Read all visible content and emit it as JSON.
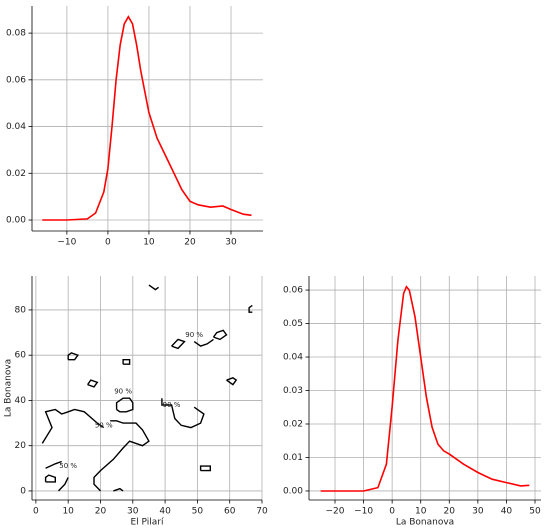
{
  "chart_data": [
    {
      "type": "line",
      "grid": true,
      "x": [
        -16,
        -10,
        -5,
        -3,
        -1,
        0,
        1,
        2,
        3,
        4,
        5,
        6,
        7,
        8,
        10,
        12,
        15,
        18,
        20,
        22,
        25,
        28,
        30,
        33,
        35
      ],
      "series": [
        {
          "color": "#ff0000",
          "values": [
            0,
            0,
            0.0005,
            0.003,
            0.012,
            0.022,
            0.04,
            0.06,
            0.075,
            0.084,
            0.087,
            0.084,
            0.075,
            0.064,
            0.046,
            0.035,
            0.024,
            0.013,
            0.008,
            0.0065,
            0.0055,
            0.006,
            0.0045,
            0.0025,
            0.002
          ]
        }
      ],
      "xlim": [
        -18.5,
        37.8
      ],
      "ylim": [
        -0.0047,
        0.0916
      ],
      "xticks": [
        {
          "value": -10,
          "label": "−10"
        },
        0,
        10,
        20,
        30
      ],
      "yticks": [
        {
          "value": 0,
          "label": "0.00"
        },
        {
          "value": 0.02,
          "label": "0.02"
        },
        {
          "value": 0.04,
          "label": "0.04"
        },
        {
          "value": 0.06,
          "label": "0.06"
        },
        {
          "value": 0.08,
          "label": "0.08"
        }
      ]
    },
    {
      "type": "contour",
      "grid": true,
      "color": "#000000",
      "xlabel": "El Pilarí",
      "ylabel": "La Bonanova",
      "lines": [
        {
          "x": [
            2,
            5,
            3,
            6,
            8,
            10,
            12,
            15,
            19,
            21
          ],
          "y": [
            21,
            28,
            35,
            36,
            34,
            35,
            36,
            35,
            30,
            28
          ]
        },
        {
          "x": [
            23,
            25,
            27,
            31,
            33,
            35,
            33,
            29,
            27,
            24,
            20,
            18,
            18,
            20
          ],
          "y": [
            31,
            31,
            30,
            30,
            27,
            22,
            20,
            22,
            19,
            14,
            9,
            6,
            3,
            0
          ]
        },
        {
          "x": [
            25,
            25,
            27,
            29,
            30,
            30,
            28,
            26,
            25
          ],
          "y": [
            36,
            39,
            41,
            41,
            39,
            36,
            35,
            35,
            36
          ]
        },
        {
          "x": [
            10,
            12,
            13,
            11,
            10,
            10
          ],
          "y": [
            58,
            58,
            60,
            61,
            60,
            58
          ]
        },
        {
          "x": [
            16,
            18,
            19,
            17,
            16
          ],
          "y": [
            47,
            46,
            48,
            49,
            47
          ]
        },
        {
          "x": [
            27,
            29,
            29,
            27,
            27
          ],
          "y": [
            56,
            56,
            58,
            58,
            56
          ]
        },
        {
          "x": [
            3,
            6,
            6,
            4,
            3,
            3
          ],
          "y": [
            4,
            4,
            6,
            7,
            6,
            4
          ]
        },
        {
          "x": [
            24,
            26,
            27
          ],
          "y": [
            0,
            1,
            0
          ]
        },
        {
          "x": [
            51,
            54,
            54,
            51,
            51
          ],
          "y": [
            9,
            9,
            11,
            11,
            9
          ]
        },
        {
          "x": [
            42,
            44,
            46,
            44,
            42
          ],
          "y": [
            64,
            67,
            66,
            63,
            64
          ]
        },
        {
          "x": [
            49,
            51,
            53,
            55
          ],
          "y": [
            66,
            64,
            65,
            67
          ]
        },
        {
          "x": [
            55,
            57,
            59,
            58,
            56,
            55
          ],
          "y": [
            68,
            67,
            69,
            71,
            70,
            68
          ]
        },
        {
          "x": [
            59,
            61,
            62,
            61,
            59
          ],
          "y": [
            49,
            47,
            49,
            50,
            49
          ]
        },
        {
          "x": [
            67,
            66,
            66,
            67
          ],
          "y": [
            82,
            81,
            79,
            79
          ]
        },
        {
          "x": [
            35,
            37,
            38
          ],
          "y": [
            91,
            89,
            90
          ]
        },
        {
          "x": [
            3,
            6,
            8
          ],
          "y": [
            10,
            12,
            13
          ]
        },
        {
          "x": [
            7,
            9,
            10
          ],
          "y": [
            0,
            3,
            6
          ]
        },
        {
          "x": [
            39,
            39,
            42,
            43,
            45,
            48,
            51,
            52,
            49
          ],
          "y": [
            41,
            38,
            38,
            32,
            29,
            28,
            30,
            34,
            37
          ]
        }
      ],
      "annotations": [
        {
          "text": "90 %",
          "x": 49,
          "y": 69
        },
        {
          "text": "90 %",
          "x": 27,
          "y": 44
        },
        {
          "text": "90 %",
          "x": 42,
          "y": 38
        },
        {
          "text": "50 %",
          "x": 21,
          "y": 29
        },
        {
          "text": "50 %",
          "x": 10,
          "y": 11
        }
      ],
      "xlim": [
        -1.2,
        70
      ],
      "ylim": [
        -4,
        95
      ],
      "xticks": [
        0,
        10,
        20,
        30,
        40,
        50,
        60,
        70
      ],
      "yticks": [
        0,
        20,
        40,
        60,
        80
      ]
    },
    {
      "type": "line",
      "grid": true,
      "xlabel": "La Bonanova",
      "x": [
        -25,
        -10,
        -5,
        -2,
        0,
        2,
        4,
        5,
        6,
        8,
        10,
        12,
        14,
        16,
        18,
        20,
        25,
        30,
        35,
        40,
        45,
        48
      ],
      "series": [
        {
          "color": "#ff0000",
          "values": [
            0,
            0,
            0.001,
            0.008,
            0.025,
            0.045,
            0.059,
            0.061,
            0.06,
            0.052,
            0.04,
            0.028,
            0.019,
            0.014,
            0.012,
            0.011,
            0.008,
            0.0055,
            0.0035,
            0.0025,
            0.0015,
            0.0017
          ]
        }
      ],
      "xlim": [
        -29.1,
        52.1
      ],
      "ylim": [
        -0.0027,
        0.0642
      ],
      "xticks": [
        {
          "value": -20,
          "label": "−20"
        },
        {
          "value": -10,
          "label": "−10"
        },
        0,
        10,
        20,
        30,
        40,
        50
      ],
      "yticks": [
        {
          "value": 0,
          "label": "0.00"
        },
        {
          "value": 0.01,
          "label": "0.01"
        },
        {
          "value": 0.02,
          "label": "0.02"
        },
        {
          "value": 0.03,
          "label": "0.03"
        },
        {
          "value": 0.04,
          "label": "0.04"
        },
        {
          "value": 0.05,
          "label": "0.05"
        },
        {
          "value": 0.06,
          "label": "0.06"
        }
      ]
    }
  ]
}
